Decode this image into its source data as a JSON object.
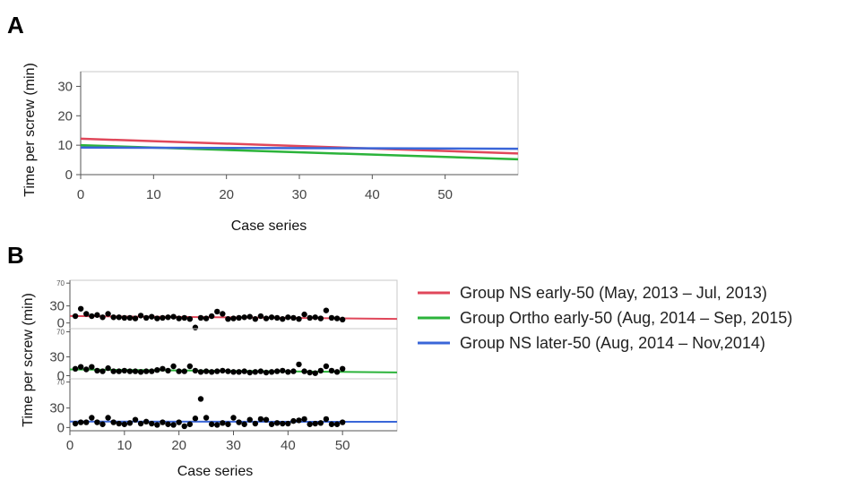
{
  "panels": {
    "a_label": "A",
    "b_label": "B"
  },
  "legend": [
    {
      "label": "Group NS early-50 (May, 2013 – Jul, 2013)",
      "color": "#e0475a"
    },
    {
      "label": "Group Ortho early-50 (Aug, 2014 – Sep, 2015)",
      "color": "#2bb33a"
    },
    {
      "label": "Group NS later-50 (Aug, 2014 – Nov,2014)",
      "color": "#3a66d8"
    }
  ],
  "chart_data": [
    {
      "panel": "A",
      "type": "line",
      "xlabel": "Case series",
      "ylabel": "Time per screw (min)",
      "xlim": [
        0,
        60
      ],
      "ylim": [
        0,
        35
      ],
      "xticks": [
        0,
        10,
        20,
        30,
        40,
        50
      ],
      "yticks": [
        0,
        10,
        20,
        30
      ],
      "series": [
        {
          "name": "Group NS early-50 (May, 2013 – Jul, 2013)",
          "color": "#e0475a",
          "x": [
            0,
            60
          ],
          "y": [
            12.2,
            7.2
          ]
        },
        {
          "name": "Group Ortho early-50 (Aug, 2014 – Sep, 2015)",
          "color": "#2bb33a",
          "x": [
            0,
            60
          ],
          "y": [
            10.0,
            5.2
          ]
        },
        {
          "name": "Group NS later-50 (Aug, 2014 – Nov,2014)",
          "color": "#3a66d8",
          "x": [
            0,
            60
          ],
          "y": [
            9.2,
            8.8
          ]
        }
      ]
    },
    {
      "panel": "B",
      "type": "scatter",
      "xlabel": "Case series",
      "ylabel": "Time per screw (min)",
      "xlim": [
        0,
        60
      ],
      "xticks": [
        0,
        10,
        20,
        30,
        40,
        50
      ],
      "subplots": [
        {
          "name": "Group NS early-50 (May, 2013 – Jul, 2013)",
          "color": "#e0475a",
          "ylim": [
            -10,
            75
          ],
          "yticks": [
            0,
            30,
            70
          ],
          "fit": [
            12.2,
            7.2
          ],
          "x": [
            1,
            2,
            3,
            4,
            5,
            6,
            7,
            8,
            9,
            10,
            11,
            12,
            13,
            14,
            15,
            16,
            17,
            18,
            19,
            20,
            21,
            22,
            23,
            24,
            25,
            26,
            27,
            28,
            29,
            30,
            31,
            32,
            33,
            34,
            35,
            36,
            37,
            38,
            39,
            40,
            41,
            42,
            43,
            44,
            45,
            46,
            47,
            48,
            49,
            50
          ],
          "y": [
            12,
            25,
            16,
            12,
            14,
            10,
            16,
            10,
            10,
            9,
            9,
            8,
            13,
            9,
            11,
            8,
            9,
            10,
            11,
            8,
            9,
            7,
            -8,
            9,
            8,
            12,
            20,
            16,
            7,
            8,
            9,
            10,
            11,
            7,
            12,
            8,
            10,
            9,
            7,
            10,
            9,
            7,
            15,
            9,
            10,
            8,
            22,
            9,
            8,
            6
          ]
        },
        {
          "name": "Group Ortho early-50 (Aug, 2014 – Sep, 2015)",
          "color": "#2bb33a",
          "ylim": [
            -5,
            75
          ],
          "yticks": [
            0,
            30,
            70
          ],
          "fit": [
            10.0,
            5.2
          ],
          "x": [
            1,
            2,
            3,
            4,
            5,
            6,
            7,
            8,
            9,
            10,
            11,
            12,
            13,
            14,
            15,
            16,
            17,
            18,
            19,
            20,
            21,
            22,
            23,
            24,
            25,
            26,
            27,
            28,
            29,
            30,
            31,
            32,
            33,
            34,
            35,
            36,
            37,
            38,
            39,
            40,
            41,
            42,
            43,
            44,
            45,
            46,
            47,
            48,
            49,
            50
          ],
          "y": [
            11,
            14,
            10,
            14,
            8,
            7,
            12,
            7,
            7,
            8,
            7,
            7,
            6,
            7,
            7,
            9,
            11,
            8,
            15,
            7,
            7,
            15,
            8,
            6,
            7,
            6,
            7,
            8,
            7,
            6,
            6,
            7,
            5,
            6,
            7,
            5,
            6,
            7,
            8,
            6,
            7,
            18,
            7,
            5,
            4,
            8,
            15,
            8,
            6,
            11
          ]
        },
        {
          "name": "Group NS later-50 (Aug, 2014 – Nov,2014)",
          "color": "#3a66d8",
          "ylim": [
            -5,
            75
          ],
          "yticks": [
            0,
            30,
            70
          ],
          "fit": [
            9.2,
            8.8
          ],
          "x": [
            1,
            2,
            3,
            4,
            5,
            6,
            7,
            8,
            9,
            10,
            11,
            12,
            13,
            14,
            15,
            16,
            17,
            18,
            19,
            20,
            21,
            22,
            23,
            24,
            25,
            26,
            27,
            28,
            29,
            30,
            31,
            32,
            33,
            34,
            35,
            36,
            37,
            38,
            39,
            40,
            41,
            42,
            43,
            44,
            45,
            46,
            47,
            48,
            49,
            50
          ],
          "y": [
            6,
            8,
            8,
            15,
            8,
            5,
            15,
            8,
            6,
            5,
            7,
            12,
            6,
            9,
            6,
            4,
            8,
            5,
            4,
            8,
            2,
            5,
            14,
            44,
            15,
            5,
            4,
            7,
            5,
            15,
            8,
            5,
            12,
            6,
            13,
            12,
            5,
            7,
            6,
            6,
            10,
            11,
            13,
            5,
            6,
            7,
            13,
            5,
            5,
            8
          ]
        }
      ]
    }
  ]
}
